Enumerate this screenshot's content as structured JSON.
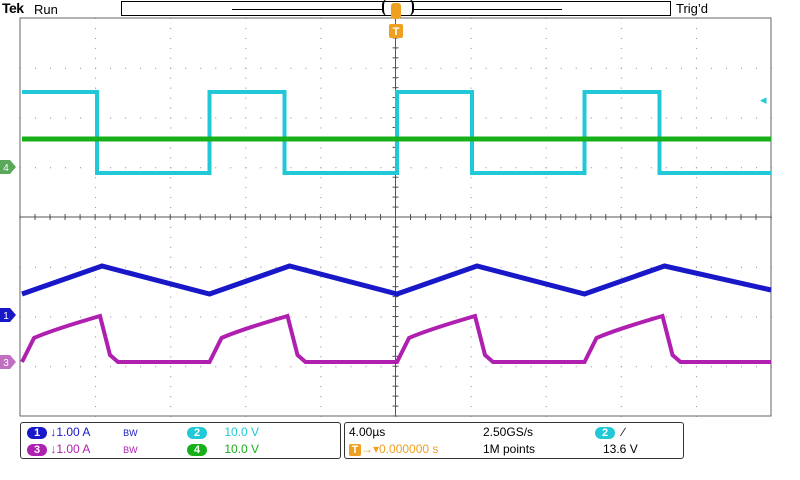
{
  "header": {
    "brand": "Tek",
    "status": "Run",
    "trigger_state": "Trig’d"
  },
  "colors": {
    "ch1": "#1818c8",
    "ch2": "#20c8d8",
    "ch3": "#b020b0",
    "ch4": "#18b018",
    "accent": "#f0a020",
    "grid": "#888888"
  },
  "markers": {
    "trigger_position_symbol": "T",
    "ch4_marker": "4",
    "ch1_marker": "1",
    "ch3_marker": "3",
    "trigger_level_arrow": "◂"
  },
  "channels": [
    {
      "id": "1",
      "coupling": "↓",
      "scale": "1.00 A",
      "bw": "BW"
    },
    {
      "id": "2",
      "scale": "10.0 V"
    },
    {
      "id": "3",
      "coupling": "↓",
      "scale": "1.00 A",
      "bw": "BW"
    },
    {
      "id": "4",
      "scale": "10.0 V"
    }
  ],
  "timebase": {
    "scale": "4.00µs",
    "sample_rate": "2.50GS/s",
    "trigger_position": "0.000000 s",
    "record_length": "1M points"
  },
  "trigger": {
    "source": "2",
    "slope": "∕",
    "level": "13.6 V"
  }
}
